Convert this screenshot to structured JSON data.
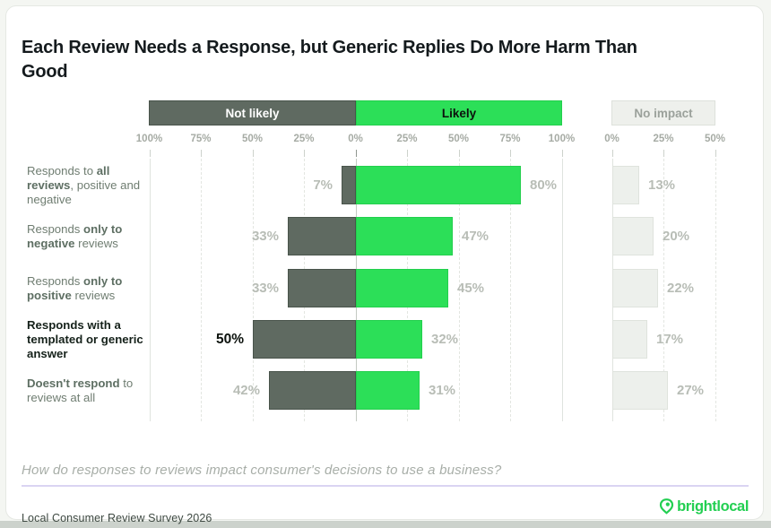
{
  "title": "Each Review Needs a Response, but Generic Replies Do More Harm Than Good",
  "legend": {
    "not_likely": "Not likely",
    "likely": "Likely",
    "no_impact": "No impact"
  },
  "footer": {
    "question": "How do responses to reviews impact consumer's decisions to use a business?",
    "source": "Local Consumer Review Survey 2026",
    "brand": "brightlocal"
  },
  "chart_data": {
    "type": "bar",
    "variant": "horizontal-diverging",
    "title": "Each Review Needs a Response, but Generic Replies Do More Harm Than Good",
    "legend_entries": [
      "Not likely",
      "Likely",
      "No impact"
    ],
    "categories": [
      [
        {
          "text": "Responds to ",
          "bold": false
        },
        {
          "text": "all reviews",
          "bold": true
        },
        {
          "text": ", positive and negative",
          "bold": false
        }
      ],
      [
        {
          "text": "Responds ",
          "bold": false
        },
        {
          "text": "only to negative",
          "bold": true
        },
        {
          "text": " reviews",
          "bold": false
        }
      ],
      [
        {
          "text": "Responds ",
          "bold": false
        },
        {
          "text": "only to positive",
          "bold": true
        },
        {
          "text": " reviews",
          "bold": false
        }
      ],
      [
        {
          "text": "Responds with a templated or generic answer",
          "bold": true
        }
      ],
      [
        {
          "text": "Doesn't respond",
          "bold": true
        },
        {
          "text": " to reviews at all",
          "bold": false
        }
      ]
    ],
    "emphasized_row": 3,
    "series": [
      {
        "name": "Not likely",
        "values": [
          7,
          33,
          33,
          50,
          42
        ],
        "color": "#5f6a61",
        "direction": "left"
      },
      {
        "name": "Likely",
        "values": [
          80,
          47,
          45,
          32,
          31
        ],
        "color": "#2cdf58",
        "direction": "right"
      },
      {
        "name": "No impact",
        "values": [
          13,
          20,
          22,
          17,
          27
        ],
        "color": "#edf0ec",
        "direction": "right-separate"
      }
    ],
    "value_label_format": "{v}%",
    "main_axis": {
      "ticks": [
        "100%",
        "75%",
        "50%",
        "25%",
        "0%",
        "25%",
        "50%",
        "75%",
        "100%"
      ],
      "max_pct": 100,
      "grid": "dashed"
    },
    "impact_axis": {
      "ticks": [
        "0%",
        "25%",
        "50%"
      ],
      "max_pct": 50,
      "grid": "dashed"
    },
    "colors": {
      "not_likely": "#5f6a61",
      "likely": "#2cdf58",
      "no_impact_fill": "#edf0ec",
      "value_label": "#b8bdb6",
      "emphasis_text": "#0c120d",
      "brand_green": "#23cf52"
    }
  }
}
